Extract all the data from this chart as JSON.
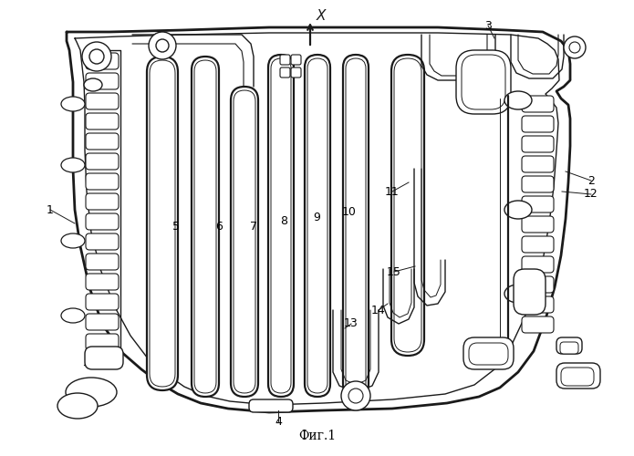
{
  "title": "Фиг.1",
  "bg_color": "#ffffff",
  "line_color": "#1a1a1a",
  "fig_width": 6.95,
  "fig_height": 5.0,
  "dpi": 100,
  "labels": [
    [
      "1",
      55,
      230
    ],
    [
      "2",
      648,
      198
    ],
    [
      "3",
      535,
      28
    ],
    [
      "4",
      305,
      462
    ],
    [
      "5",
      193,
      248
    ],
    [
      "6",
      240,
      248
    ],
    [
      "7",
      278,
      248
    ],
    [
      "8",
      311,
      242
    ],
    [
      "9",
      347,
      238
    ],
    [
      "10",
      383,
      232
    ],
    [
      "11",
      430,
      210
    ],
    [
      "12",
      648,
      213
    ],
    [
      "13",
      385,
      355
    ],
    [
      "14",
      415,
      340
    ],
    [
      "15",
      432,
      298
    ]
  ]
}
